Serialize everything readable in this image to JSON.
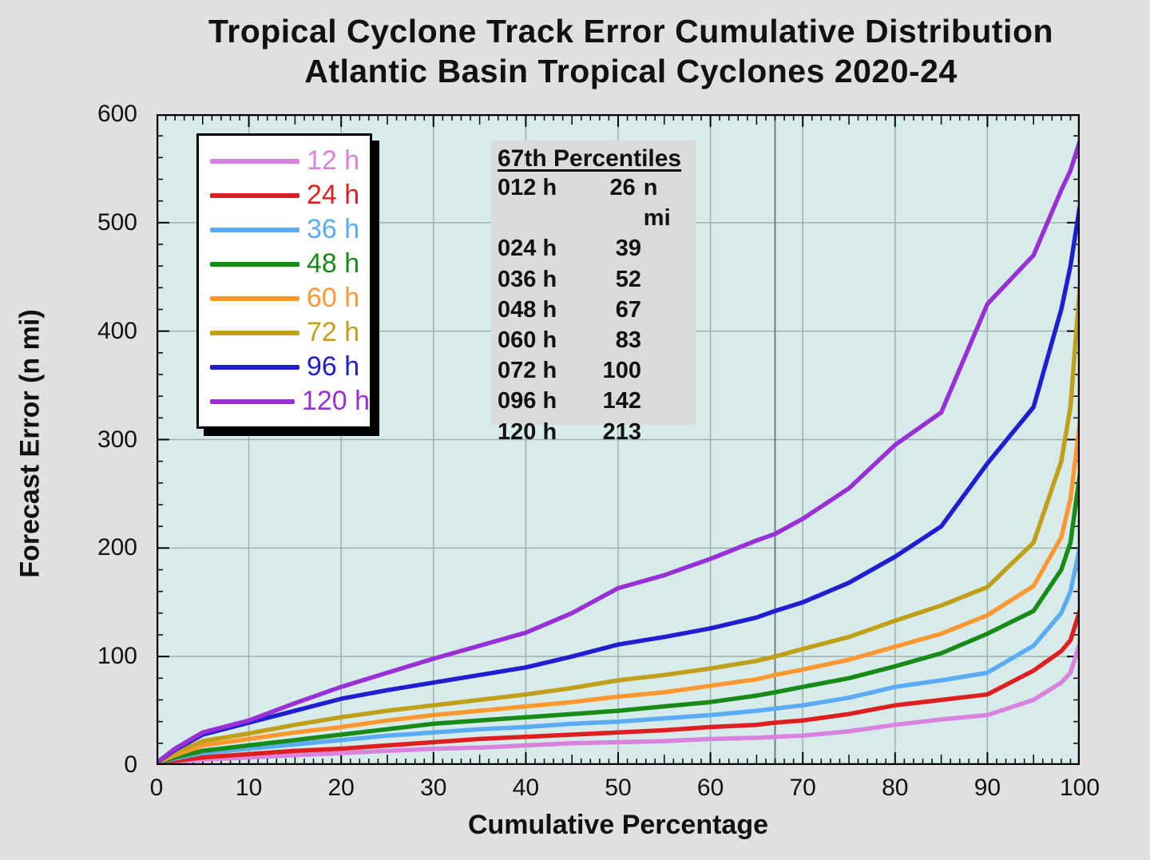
{
  "title": {
    "line1": "Tropical Cyclone Track Error Cumulative Distribution",
    "line2": "Atlantic Basin Tropical Cyclones 2020-24"
  },
  "axes": {
    "x": {
      "label": "Cumulative Percentage",
      "min": 0,
      "max": 100,
      "major_ticks": [
        0,
        10,
        20,
        30,
        40,
        50,
        60,
        70,
        80,
        90,
        100
      ],
      "minor_step": 1
    },
    "y": {
      "label": "Forecast Error (n mi)",
      "min": 0,
      "max": 600,
      "major_ticks": [
        0,
        100,
        200,
        300,
        400,
        500,
        600
      ],
      "minor_step": 20
    }
  },
  "colors": {
    "page_bg": "#E0E0E0",
    "plot_bg": "#D7ECEA",
    "grid": "#9FB0B0",
    "percentile_line": "#6E8080",
    "axis": "#000000"
  },
  "percentile_box": {
    "header": "67th Percentiles",
    "rows": [
      {
        "hour": "012 h",
        "value": "26",
        "suffix": "n mi"
      },
      {
        "hour": "024 h",
        "value": "39",
        "suffix": ""
      },
      {
        "hour": "036 h",
        "value": "52",
        "suffix": ""
      },
      {
        "hour": "048 h",
        "value": "67",
        "suffix": ""
      },
      {
        "hour": "060 h",
        "value": "83",
        "suffix": ""
      },
      {
        "hour": "072 h",
        "value": "100",
        "suffix": ""
      },
      {
        "hour": "096 h",
        "value": "142",
        "suffix": ""
      },
      {
        "hour": "120 h",
        "value": "213",
        "suffix": ""
      }
    ]
  },
  "legend": [
    {
      "label": "12 h",
      "color": "#D983DF"
    },
    {
      "label": "24 h",
      "color": "#DF1F1F"
    },
    {
      "label": "36 h",
      "color": "#5CACF5"
    },
    {
      "label": "48 h",
      "color": "#178A17"
    },
    {
      "label": "60 h",
      "color": "#FF9830"
    },
    {
      "label": "72 h",
      "color": "#BFA018"
    },
    {
      "label": "96 h",
      "color": "#1F1FD1"
    },
    {
      "label": "120 h",
      "color": "#9930D5"
    }
  ],
  "chart_data": {
    "type": "line",
    "title": "Tropical Cyclone Track Error Cumulative Distribution — Atlantic Basin Tropical Cyclones 2020-24",
    "xlabel": "Cumulative Percentage",
    "ylabel": "Forecast Error (n mi)",
    "xlim": [
      0,
      100
    ],
    "ylim": [
      0,
      600
    ],
    "grid": true,
    "legend_position": "upper-left-inside",
    "percentile_marker_x": 67,
    "x": [
      0,
      2,
      5,
      10,
      15,
      20,
      25,
      30,
      35,
      40,
      45,
      50,
      55,
      60,
      65,
      67,
      70,
      75,
      80,
      85,
      90,
      95,
      98,
      99,
      100
    ],
    "series": [
      {
        "name": "12 h",
        "color": "#D983DF",
        "values": [
          1,
          3,
          5,
          7,
          9,
          11,
          13,
          15,
          16,
          18,
          20,
          21,
          22,
          24,
          25,
          26,
          27,
          31,
          37,
          42,
          46,
          60,
          76,
          85,
          112
        ]
      },
      {
        "name": "24 h",
        "color": "#DF1F1F",
        "values": [
          1,
          4,
          7,
          10,
          13,
          15,
          18,
          21,
          24,
          26,
          28,
          30,
          32,
          35,
          37,
          39,
          41,
          47,
          55,
          60,
          65,
          87,
          105,
          115,
          142
        ]
      },
      {
        "name": "36 h",
        "color": "#5CACF5",
        "values": [
          1,
          6,
          11,
          15,
          19,
          23,
          27,
          30,
          33,
          35,
          38,
          40,
          43,
          46,
          50,
          52,
          55,
          62,
          72,
          78,
          85,
          110,
          140,
          160,
          200
        ]
      },
      {
        "name": "48 h",
        "color": "#178A17",
        "values": [
          1,
          7,
          13,
          18,
          23,
          28,
          33,
          38,
          41,
          44,
          47,
          50,
          54,
          58,
          64,
          67,
          72,
          80,
          91,
          103,
          121,
          142,
          180,
          205,
          267
        ]
      },
      {
        "name": "60 h",
        "color": "#FF9830",
        "values": [
          2,
          9,
          18,
          24,
          30,
          35,
          41,
          46,
          50,
          54,
          58,
          63,
          67,
          73,
          79,
          83,
          88,
          97,
          109,
          121,
          138,
          165,
          210,
          245,
          315
        ]
      },
      {
        "name": "72 h",
        "color": "#BFA018",
        "values": [
          2,
          11,
          22,
          29,
          37,
          44,
          50,
          55,
          60,
          65,
          71,
          78,
          83,
          89,
          96,
          100,
          107,
          118,
          133,
          147,
          164,
          205,
          280,
          330,
          440
        ]
      },
      {
        "name": "96 h",
        "color": "#1F1FD1",
        "values": [
          2,
          14,
          28,
          39,
          50,
          61,
          69,
          76,
          83,
          90,
          100,
          111,
          118,
          126,
          136,
          142,
          150,
          168,
          192,
          220,
          278,
          330,
          420,
          460,
          515
        ]
      },
      {
        "name": "120 h",
        "color": "#9930D5",
        "values": [
          2,
          15,
          30,
          41,
          57,
          72,
          85,
          98,
          110,
          122,
          140,
          163,
          175,
          190,
          207,
          213,
          227,
          255,
          295,
          325,
          425,
          470,
          530,
          548,
          575
        ]
      }
    ]
  }
}
